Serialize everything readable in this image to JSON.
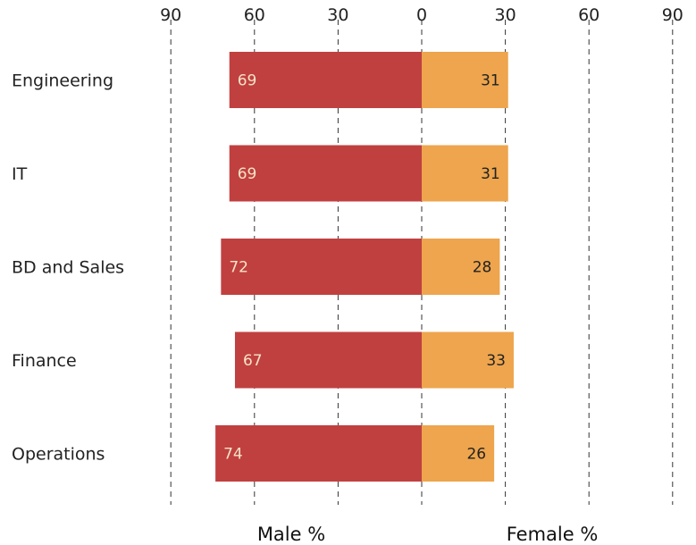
{
  "chart_data": {
    "type": "bar",
    "orientation": "horizontal-diverging",
    "categories": [
      "Engineering",
      "IT",
      "BD and Sales",
      "Finance",
      "Operations"
    ],
    "series": [
      {
        "name": "Male %",
        "values": [
          69,
          69,
          72,
          67,
          74
        ],
        "color": "#c0403f",
        "side": "left"
      },
      {
        "name": "Female %",
        "values": [
          31,
          31,
          28,
          33,
          26
        ],
        "color": "#eea54d",
        "side": "right"
      }
    ],
    "xlim": [
      -90,
      90
    ],
    "xticks": [
      -90,
      -60,
      -30,
      0,
      30,
      60,
      90
    ],
    "xtick_labels": [
      "90",
      "60",
      "30",
      "0",
      "30",
      "60",
      "90"
    ],
    "grid": "dashed vertical",
    "label_colors": {
      "male": "#f6e3c6",
      "female": "#222222"
    }
  }
}
